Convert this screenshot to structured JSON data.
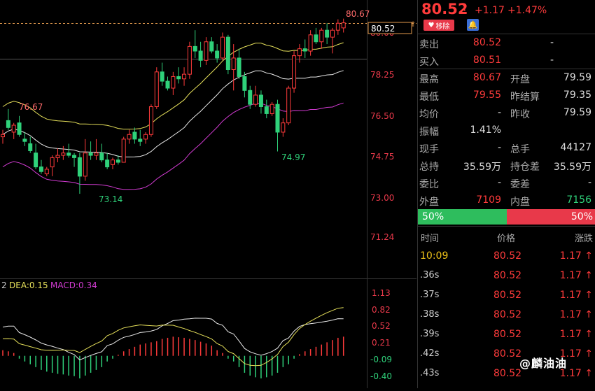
{
  "chart": {
    "ma_labels": {
      "dea": "DEA:0.15",
      "macd": "MACD:0.34",
      "dif_partial": "2"
    },
    "price_axis": [
      "78.25",
      "76.50",
      "74.75",
      "73.00",
      "71.24"
    ],
    "current_price_tag": "80.52",
    "top_axis_partial": "80.00",
    "annotations": {
      "high": "80.67",
      "left_high": "76.67",
      "low": "73.14",
      "mid_low": "74.97"
    },
    "macd_axis": [
      "1.13",
      "0.82",
      "0.52",
      "0.21",
      "-0.09",
      "-0.40"
    ],
    "colors": {
      "up": "#ff3b3b",
      "down": "#2fd17a",
      "ma_yellow": "#e6e05a",
      "ma_white": "#e8e8e8",
      "ma_magenta": "#d23bd2",
      "dashed": "#e39a4d"
    }
  },
  "chart_data": {
    "type": "candlestick",
    "candles": [
      [
        75.6,
        75.9,
        75.3,
        75.7
      ],
      [
        76.3,
        76.8,
        75.9,
        76.0
      ],
      [
        75.8,
        76.2,
        75.5,
        76.1
      ],
      [
        76.2,
        76.5,
        75.6,
        75.7
      ],
      [
        75.5,
        75.8,
        75.2,
        75.4
      ],
      [
        75.3,
        75.6,
        74.9,
        75.0
      ],
      [
        74.9,
        75.3,
        74.2,
        74.3
      ],
      [
        74.3,
        74.6,
        74.0,
        74.1
      ],
      [
        74.0,
        74.3,
        73.9,
        74.2
      ],
      [
        74.3,
        74.8,
        73.9,
        74.7
      ],
      [
        74.7,
        75.1,
        74.5,
        74.8
      ],
      [
        74.8,
        75.2,
        74.6,
        74.9
      ],
      [
        74.9,
        75.3,
        74.7,
        74.8
      ],
      [
        74.8,
        74.9,
        74.3,
        74.7
      ],
      [
        74.7,
        74.9,
        73.14,
        73.9
      ],
      [
        73.9,
        75.5,
        73.7,
        74.9
      ],
      [
        74.9,
        75.4,
        74.6,
        74.8
      ],
      [
        74.8,
        75.5,
        74.6,
        74.9
      ],
      [
        74.9,
        75.3,
        74.5,
        74.6
      ],
      [
        74.6,
        74.9,
        74.2,
        74.3
      ],
      [
        74.4,
        74.7,
        74.2,
        74.6
      ],
      [
        74.6,
        74.8,
        74.4,
        74.5
      ],
      [
        74.5,
        75.6,
        74.5,
        75.5
      ],
      [
        75.5,
        75.9,
        75.3,
        75.7
      ],
      [
        75.8,
        76.0,
        75.3,
        75.5
      ],
      [
        75.5,
        75.9,
        75.2,
        75.4
      ],
      [
        75.5,
        75.8,
        75.3,
        75.7
      ],
      [
        75.7,
        77.0,
        75.6,
        76.9
      ],
      [
        76.9,
        78.6,
        76.8,
        78.4
      ],
      [
        78.4,
        78.8,
        77.8,
        78.0
      ],
      [
        78.0,
        78.2,
        77.6,
        77.7
      ],
      [
        77.7,
        78.4,
        77.4,
        78.2
      ],
      [
        78.2,
        78.6,
        77.9,
        78.1
      ],
      [
        78.1,
        78.6,
        77.8,
        78.3
      ],
      [
        78.3,
        79.7,
        78.1,
        79.5
      ],
      [
        79.5,
        80.2,
        79.0,
        79.3
      ],
      [
        79.3,
        79.7,
        78.6,
        78.9
      ],
      [
        78.9,
        79.9,
        78.7,
        79.7
      ],
      [
        79.7,
        79.9,
        79.2,
        79.3
      ],
      [
        79.3,
        79.6,
        78.8,
        79.0
      ],
      [
        79.0,
        80.1,
        78.9,
        79.9
      ],
      [
        79.9,
        80.0,
        78.3,
        78.5
      ],
      [
        78.5,
        79.6,
        77.6,
        79.0
      ],
      [
        79.0,
        79.4,
        78.1,
        78.2
      ],
      [
        78.2,
        78.4,
        77.3,
        77.6
      ],
      [
        77.6,
        77.8,
        76.8,
        77.0
      ],
      [
        77.0,
        77.8,
        76.9,
        77.4
      ],
      [
        77.4,
        77.6,
        76.6,
        76.9
      ],
      [
        76.9,
        77.2,
        76.4,
        76.6
      ],
      [
        76.6,
        77.1,
        76.5,
        77.0
      ],
      [
        77.0,
        77.2,
        74.97,
        75.8
      ],
      [
        75.8,
        76.4,
        75.6,
        76.2
      ],
      [
        76.2,
        77.8,
        76.1,
        77.7
      ],
      [
        77.7,
        79.3,
        77.5,
        79.1
      ],
      [
        79.1,
        79.6,
        78.8,
        79.4
      ],
      [
        79.4,
        79.8,
        79.0,
        79.3
      ],
      [
        79.3,
        80.2,
        79.1,
        80.0
      ],
      [
        80.0,
        80.3,
        79.6,
        79.7
      ],
      [
        79.7,
        80.3,
        79.4,
        80.2
      ],
      [
        80.2,
        80.5,
        79.6,
        79.9
      ],
      [
        79.9,
        80.3,
        79.2,
        80.2
      ],
      [
        80.2,
        80.67,
        80.0,
        80.5
      ],
      [
        80.3,
        80.7,
        80.1,
        80.52
      ]
    ],
    "macd_hist": [
      0.1,
      0.08,
      0.05,
      -0.05,
      -0.1,
      -0.15,
      -0.2,
      -0.25,
      -0.28,
      -0.3,
      -0.32,
      -0.33,
      -0.35,
      -0.36,
      -0.4,
      -0.35,
      -0.3,
      -0.25,
      -0.2,
      -0.1,
      -0.05,
      0.02,
      0.08,
      0.12,
      0.16,
      0.2,
      0.22,
      0.24,
      0.26,
      0.3,
      0.32,
      0.34,
      0.33,
      0.32,
      0.3,
      0.28,
      0.25,
      0.22,
      0.18,
      0.1,
      0.05,
      -0.05,
      -0.1,
      -0.2,
      -0.3,
      -0.35,
      -0.38,
      -0.4,
      -0.38,
      -0.35,
      -0.3,
      -0.2,
      -0.15,
      -0.05,
      0.03,
      0.08,
      0.12,
      0.16,
      0.2,
      0.24,
      0.28,
      0.32,
      0.34
    ],
    "ylim": [
      71.24,
      80.9
    ],
    "macd_ylim": [
      -0.45,
      1.2
    ]
  },
  "panel": {
    "price": "80.52",
    "up_arrow": "↑",
    "change": "+1.17",
    "percent": "+1.47%",
    "remove_label": "移除",
    "bell_icon": "bell-icon",
    "sell_label": "卖出",
    "sell_price": "80.52",
    "sell_vol": "-",
    "buy_label": "买入",
    "buy_price": "80.51",
    "buy_vol": "-",
    "stats": [
      {
        "l1": "最高",
        "v1": "80.67",
        "c1": "red",
        "l2": "开盘",
        "v2": "79.59",
        "c2": "wht"
      },
      {
        "l1": "最低",
        "v1": "79.55",
        "c1": "red",
        "l2": "昨结算",
        "v2": "79.35",
        "c2": "wht"
      },
      {
        "l1": "均价",
        "v1": "-",
        "c1": "wht",
        "l2": "昨收",
        "v2": "79.59",
        "c2": "wht"
      },
      {
        "l1": "振幅",
        "v1": "1.41%",
        "c1": "wht",
        "l2": "",
        "v2": "",
        "c2": "wht"
      },
      {
        "l1": "现手",
        "v1": "-",
        "c1": "wht",
        "l2": "总手",
        "v2": "44127",
        "c2": "wht"
      },
      {
        "l1": "总持",
        "v1": "35.59万",
        "c1": "wht",
        "l2": "持仓差",
        "v2": "35.59万",
        "c2": "wht"
      },
      {
        "l1": "委比",
        "v1": "-",
        "c1": "wht",
        "l2": "委差",
        "v2": "-",
        "c2": "wht"
      },
      {
        "l1": "外盘",
        "v1": "7109",
        "c1": "red",
        "l2": "内盘",
        "v2": "7156",
        "c2": "grn"
      }
    ],
    "buy_pct": "50%",
    "sell_pct": "50%",
    "ticks_header": {
      "time": "时间",
      "price": "价格",
      "change": "涨跌"
    },
    "ticks": [
      {
        "time": "10:09",
        "price": "80.52",
        "change": "1.17"
      },
      {
        "time": ".36s",
        "price": "80.52",
        "change": "1.17"
      },
      {
        "time": ".37s",
        "price": "80.52",
        "change": "1.17"
      },
      {
        "time": ".38s",
        "price": "80.52",
        "change": "1.17"
      },
      {
        "time": ".39s",
        "price": "80.52",
        "change": "1.17"
      },
      {
        "time": ".42s",
        "price": "80.52",
        "change": "1.17"
      },
      {
        "time": ".43s",
        "price": "80.52",
        "change": "1.17"
      }
    ],
    "watermark": "@麟油油"
  }
}
